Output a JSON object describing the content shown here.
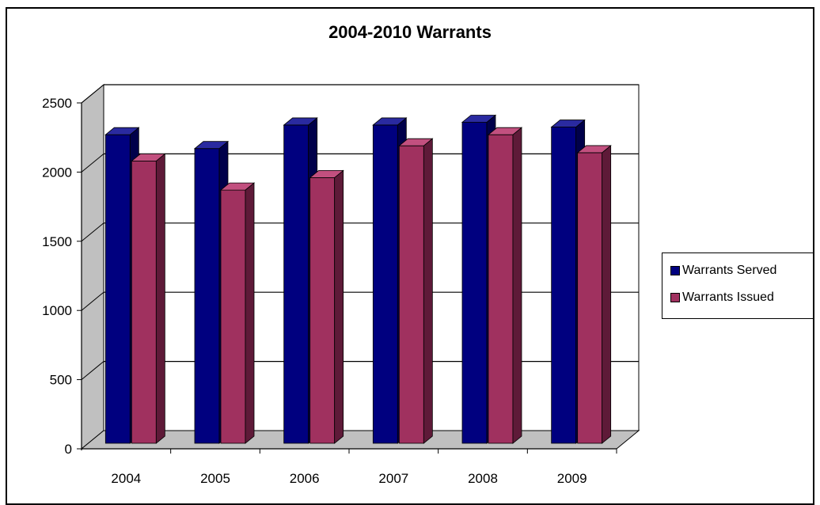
{
  "chart_data": {
    "type": "bar",
    "title": "2004-2010 Warrants",
    "categories": [
      "2004",
      "2005",
      "2006",
      "2007",
      "2008",
      "2009"
    ],
    "series": [
      {
        "name": "Warrants Served",
        "values": [
          2230,
          2130,
          2300,
          2300,
          2320,
          2285
        ],
        "color": "#00007f",
        "side_color": "#00004a",
        "top_color": "#2a2aa0"
      },
      {
        "name": "Warrants Issued",
        "values": [
          2040,
          1830,
          1920,
          2150,
          2230,
          2100
        ],
        "color": "#a0315f",
        "side_color": "#5e1a38",
        "top_color": "#c2507f"
      }
    ],
    "ylim": [
      0,
      2500
    ],
    "yticks": [
      "0",
      "500",
      "1000",
      "1500",
      "2000",
      "2500"
    ],
    "grid": true,
    "legend_position": "right",
    "style": "3d-clustered-column",
    "wall_color": "#c0c0c0",
    "floor_color": "#c0c0c0"
  }
}
